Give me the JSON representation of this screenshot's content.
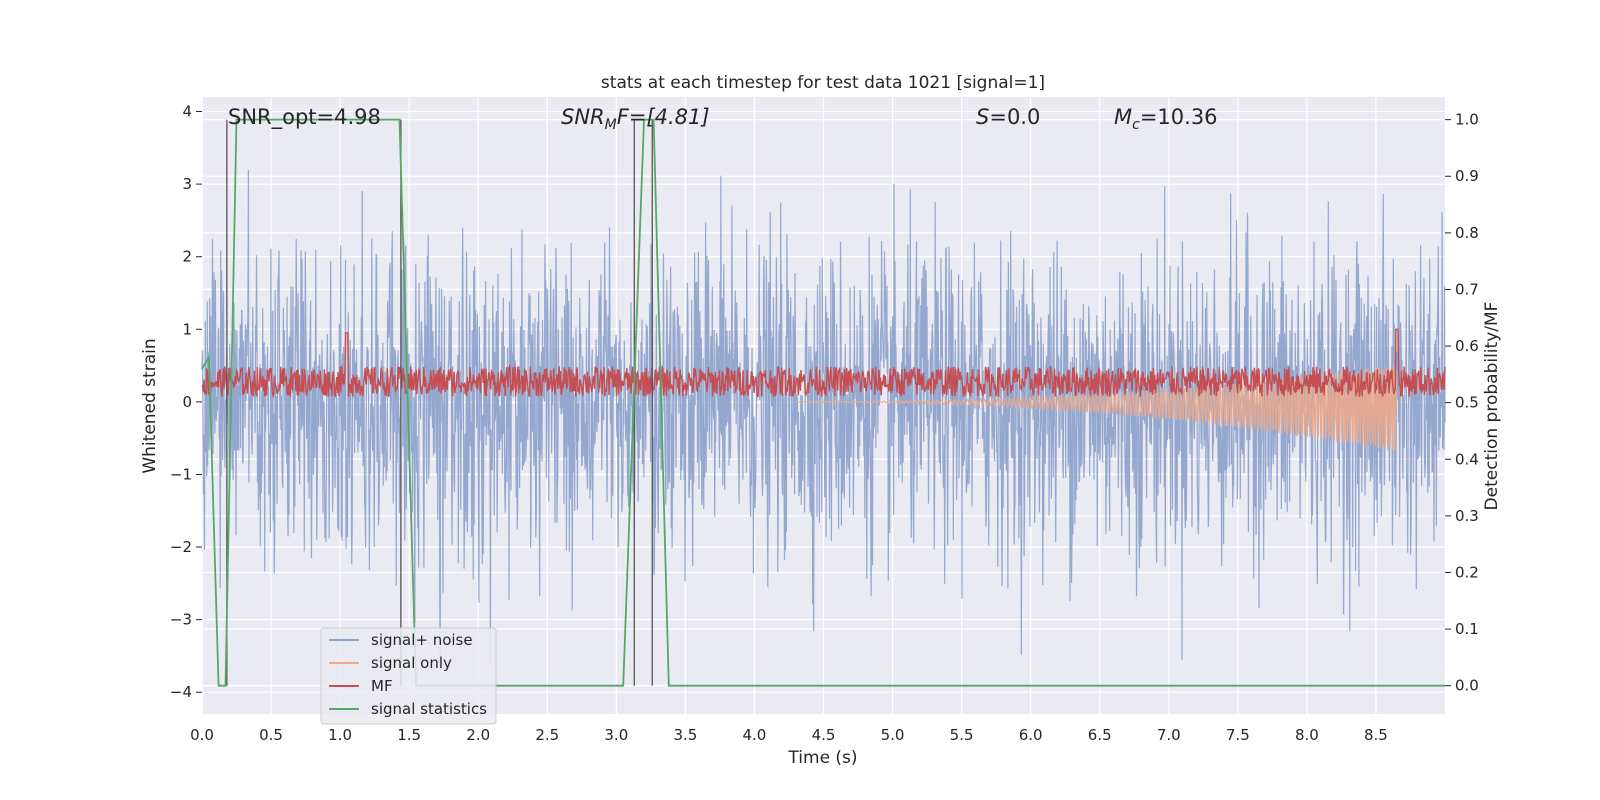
{
  "chart_data": {
    "type": "line",
    "title": "stats at each timestep for test data 1021 [signal=1]",
    "xlabel": "Time (s)",
    "ylabel_left": "Whitened strain",
    "ylabel_right": "Detection probability/MF",
    "xlim": [
      0,
      9.0
    ],
    "ylim_left": [
      -4.3,
      4.2
    ],
    "ylim_right": [
      -0.05,
      1.04
    ],
    "x_ticks": [
      "0.0",
      "0.5",
      "1.0",
      "1.5",
      "2.0",
      "2.5",
      "3.0",
      "3.5",
      "4.0",
      "4.5",
      "5.0",
      "5.5",
      "6.0",
      "6.5",
      "7.0",
      "7.5",
      "8.0",
      "8.5"
    ],
    "x_tick_values": [
      0.0,
      0.5,
      1.0,
      1.5,
      2.0,
      2.5,
      3.0,
      3.5,
      4.0,
      4.5,
      5.0,
      5.5,
      6.0,
      6.5,
      7.0,
      7.5,
      8.0,
      8.5
    ],
    "y_left_ticks": [
      "4",
      "3",
      "2",
      "1",
      "0",
      "−1",
      "−2",
      "−3",
      "−4"
    ],
    "y_left_tick_values": [
      4,
      3,
      2,
      1,
      0,
      -1,
      -2,
      -3,
      -4
    ],
    "y_right_ticks": [
      "1.0",
      "0.9",
      "0.8",
      "0.7",
      "0.6",
      "0.5",
      "0.4",
      "0.3",
      "0.2",
      "0.1",
      "0.0"
    ],
    "y_right_tick_values": [
      1.0,
      0.9,
      0.8,
      0.7,
      0.6,
      0.5,
      0.4,
      0.3,
      0.2,
      0.1,
      0.0
    ],
    "annotations": {
      "snr_opt": "SNR_opt=4.98",
      "snr_mf_prefix": "SNR",
      "snr_mf_sub": "M",
      "snr_mf_rest": "F=[4.81]",
      "s_prefix": "S",
      "s_rest": "=0.0",
      "mc_prefix": "M",
      "mc_sub": "c",
      "mc_rest": "=10.36"
    },
    "legend": {
      "placement": "lower-left",
      "entries": [
        "signal+ noise",
        "signal only",
        "MF",
        "signal statistics"
      ]
    },
    "series": [
      {
        "name": "signal+ noise",
        "color": "#8fa4cc",
        "axis": "left",
        "description_range": [
          -4.0,
          3.45
        ]
      },
      {
        "name": "signal only",
        "color": "#e8a98e",
        "axis": "left",
        "chirp_start": 4.3,
        "chirp_end": 8.65,
        "chirp_peak_amplitude": 0.6
      },
      {
        "name": "MF",
        "color": "#c44e52",
        "axis": "left",
        "baseline": 0.28,
        "amplitude": 0.3
      },
      {
        "name": "signal statistics",
        "color": "#55a868",
        "axis": "right",
        "x": [
          0.0,
          0.05,
          0.12,
          0.17,
          0.25,
          1.43,
          1.55,
          3.05,
          3.2,
          3.27,
          3.38,
          9.0
        ],
        "y": [
          0.56,
          0.58,
          0.0,
          0.0,
          1.0,
          1.0,
          0.0,
          0.0,
          1.0,
          1.0,
          0.0,
          0.0
        ]
      }
    ],
    "vertical_lines": {
      "color": "#555555",
      "x": [
        0.18,
        1.44,
        3.13,
        3.26
      ]
    },
    "grid": true
  }
}
